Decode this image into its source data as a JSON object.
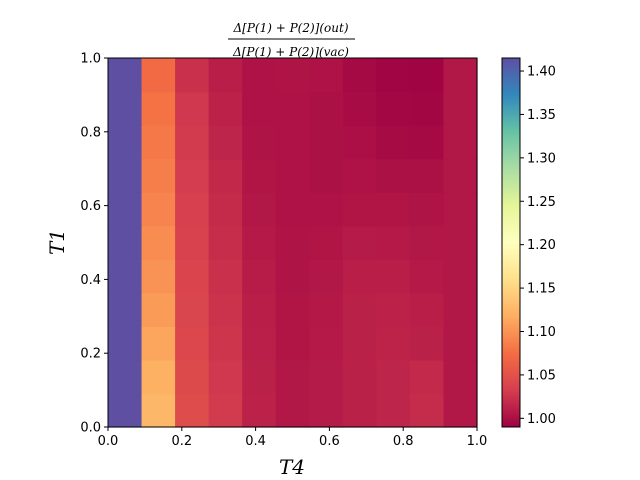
{
  "chart_data": {
    "type": "heatmap",
    "title": {
      "numerator": "Δ[P(1) + P(2)](out)",
      "denominator": "Δ[P(1) + P(2)](vac)"
    },
    "xlabel": "T4",
    "ylabel": "T1",
    "xlim": [
      0.0,
      1.0
    ],
    "ylim": [
      0.0,
      1.0
    ],
    "x_ticks": [
      "0.0",
      "0.2",
      "0.4",
      "0.6",
      "0.8",
      "1.0"
    ],
    "y_ticks": [
      "0.0",
      "0.2",
      "0.4",
      "0.6",
      "0.8",
      "1.0"
    ],
    "grid": false,
    "colormap": "Spectral",
    "colorbar": {
      "vmin": 0.99,
      "vmax": 1.415,
      "ticks": [
        "1.00",
        "1.05",
        "1.10",
        "1.15",
        "1.20",
        "1.25",
        "1.30",
        "1.35",
        "1.40"
      ]
    },
    "x_bins": 11,
    "y_bins": 11,
    "values": [
      [
        1.415,
        1.125,
        1.045,
        1.03,
        1.013,
        1.005,
        1.008,
        1.012,
        1.015,
        1.02,
        1.005
      ],
      [
        1.415,
        1.12,
        1.043,
        1.028,
        1.012,
        1.005,
        1.008,
        1.012,
        1.015,
        1.018,
        1.005
      ],
      [
        1.415,
        1.112,
        1.041,
        1.026,
        1.011,
        1.004,
        1.007,
        1.012,
        1.014,
        1.012,
        1.005
      ],
      [
        1.415,
        1.105,
        1.04,
        1.025,
        1.01,
        1.004,
        1.006,
        1.012,
        1.013,
        1.01,
        1.005
      ],
      [
        1.415,
        1.1,
        1.038,
        1.023,
        1.009,
        1.003,
        1.005,
        1.01,
        1.01,
        1.007,
        1.005
      ],
      [
        1.415,
        1.095,
        1.036,
        1.021,
        1.007,
        1.003,
        1.004,
        1.008,
        1.007,
        1.005,
        1.005
      ],
      [
        1.415,
        1.09,
        1.034,
        1.019,
        1.005,
        1.002,
        1.002,
        1.004,
        1.004,
        1.003,
        1.005
      ],
      [
        1.415,
        1.086,
        1.032,
        1.017,
        1.004,
        1.002,
        1.001,
        1.002,
        1.001,
        1.001,
        1.005
      ],
      [
        1.415,
        1.082,
        1.03,
        1.015,
        1.003,
        1.002,
        1.001,
        1.0,
        0.997,
        0.996,
        1.005
      ],
      [
        1.415,
        1.078,
        1.028,
        1.013,
        1.002,
        1.002,
        1.001,
        0.998,
        0.995,
        0.994,
        1.005
      ],
      [
        1.415,
        1.072,
        1.023,
        1.01,
        1.002,
        1.003,
        1.002,
        0.996,
        0.993,
        0.992,
        1.005
      ]
    ]
  }
}
